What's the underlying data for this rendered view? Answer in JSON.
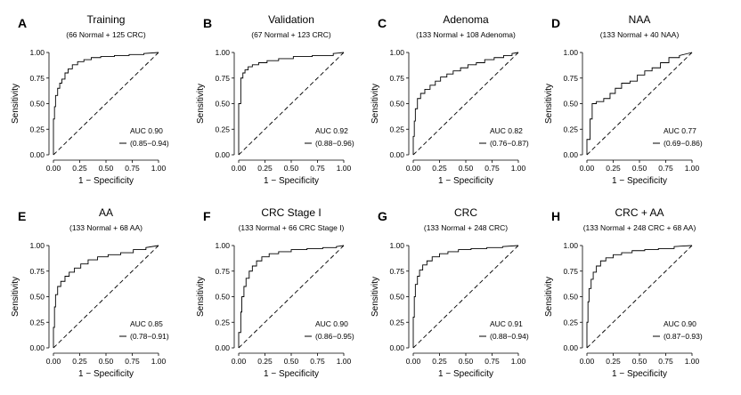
{
  "chart_data": [
    {
      "type": "line",
      "panel_letter": "A",
      "title": "Training",
      "subtitle": "(66 Normal + 125 CRC)",
      "xlabel": "1 − Specificity",
      "ylabel": "Sensitivity",
      "xlim": [
        0,
        1
      ],
      "ylim": [
        0,
        1
      ],
      "x_ticks": [
        "0.00",
        "0.25",
        "0.50",
        "0.75",
        "1.00"
      ],
      "y_ticks": [
        "0.00",
        "0.25",
        "0.50",
        "0.75",
        "1.00"
      ],
      "auc": "AUC 0.90",
      "ci": "(0.85−0.94)",
      "series": [
        {
          "x": [
            0,
            0,
            0.01,
            0.01,
            0.02,
            0.02,
            0.04,
            0.04,
            0.06,
            0.06,
            0.08,
            0.08,
            0.11,
            0.11,
            0.14,
            0.14,
            0.18,
            0.18,
            0.23,
            0.23,
            0.29,
            0.29,
            0.36,
            0.36,
            0.45,
            0.45,
            0.58,
            0.58,
            0.72,
            0.72,
            0.86,
            0.86,
            1
          ],
          "y": [
            0,
            0.35,
            0.35,
            0.47,
            0.47,
            0.58,
            0.58,
            0.65,
            0.65,
            0.7,
            0.7,
            0.74,
            0.74,
            0.8,
            0.8,
            0.84,
            0.84,
            0.88,
            0.88,
            0.91,
            0.91,
            0.93,
            0.93,
            0.95,
            0.95,
            0.96,
            0.96,
            0.97,
            0.97,
            0.98,
            0.98,
            0.99,
            1
          ]
        }
      ]
    },
    {
      "type": "line",
      "panel_letter": "B",
      "title": "Validation",
      "subtitle": "(67 Normal + 123 CRC)",
      "xlabel": "1 − Specificity",
      "ylabel": "Sensitivity",
      "xlim": [
        0,
        1
      ],
      "ylim": [
        0,
        1
      ],
      "x_ticks": [
        "0.00",
        "0.25",
        "0.50",
        "0.75",
        "1.00"
      ],
      "y_ticks": [
        "0.00",
        "0.25",
        "0.50",
        "0.75",
        "1.00"
      ],
      "auc": "AUC 0.92",
      "ci": "(0.88−0.96)",
      "series": [
        {
          "x": [
            0,
            0,
            0.02,
            0.02,
            0.04,
            0.04,
            0.06,
            0.06,
            0.09,
            0.09,
            0.13,
            0.13,
            0.19,
            0.19,
            0.27,
            0.27,
            0.38,
            0.38,
            0.52,
            0.52,
            0.7,
            0.7,
            0.9,
            0.9,
            1
          ],
          "y": [
            0,
            0.5,
            0.5,
            0.75,
            0.75,
            0.8,
            0.8,
            0.83,
            0.83,
            0.86,
            0.86,
            0.88,
            0.88,
            0.9,
            0.9,
            0.92,
            0.92,
            0.94,
            0.94,
            0.96,
            0.96,
            0.97,
            0.97,
            0.99,
            1
          ]
        }
      ]
    },
    {
      "type": "line",
      "panel_letter": "C",
      "title": "Adenoma",
      "subtitle": "(133 Normal + 108 Adenoma)",
      "xlabel": "1 − Specificity",
      "ylabel": "Sensitivity",
      "xlim": [
        0,
        1
      ],
      "ylim": [
        0,
        1
      ],
      "x_ticks": [
        "0.00",
        "0.25",
        "0.50",
        "0.75",
        "1.00"
      ],
      "y_ticks": [
        "0.00",
        "0.25",
        "0.50",
        "0.75",
        "1.00"
      ],
      "auc": "AUC 0.82",
      "ci": "(0.76−0.87)",
      "series": [
        {
          "x": [
            0,
            0,
            0.01,
            0.01,
            0.02,
            0.02,
            0.04,
            0.04,
            0.07,
            0.07,
            0.11,
            0.11,
            0.16,
            0.16,
            0.21,
            0.21,
            0.26,
            0.26,
            0.32,
            0.32,
            0.38,
            0.38,
            0.45,
            0.45,
            0.52,
            0.52,
            0.6,
            0.6,
            0.68,
            0.68,
            0.77,
            0.77,
            0.86,
            0.86,
            0.94,
            0.94,
            1
          ],
          "y": [
            0,
            0.18,
            0.18,
            0.33,
            0.33,
            0.45,
            0.45,
            0.55,
            0.55,
            0.6,
            0.6,
            0.64,
            0.64,
            0.68,
            0.68,
            0.72,
            0.72,
            0.76,
            0.76,
            0.79,
            0.79,
            0.82,
            0.82,
            0.85,
            0.85,
            0.88,
            0.88,
            0.9,
            0.9,
            0.93,
            0.93,
            0.95,
            0.95,
            0.97,
            0.97,
            0.99,
            1
          ]
        }
      ]
    },
    {
      "type": "line",
      "panel_letter": "D",
      "title": "NAA",
      "subtitle": "(133 Normal + 40 NAA)",
      "xlabel": "1 − Specificity",
      "ylabel": "Sensitivity",
      "xlim": [
        0,
        1
      ],
      "ylim": [
        0,
        1
      ],
      "x_ticks": [
        "0.00",
        "0.25",
        "0.50",
        "0.75",
        "1.00"
      ],
      "y_ticks": [
        "0.00",
        "0.25",
        "0.50",
        "0.75",
        "1.00"
      ],
      "auc": "AUC 0.77",
      "ci": "(0.69−0.86)",
      "series": [
        {
          "x": [
            0,
            0,
            0.03,
            0.03,
            0.05,
            0.05,
            0.09,
            0.09,
            0.16,
            0.16,
            0.22,
            0.22,
            0.27,
            0.27,
            0.33,
            0.33,
            0.41,
            0.41,
            0.48,
            0.48,
            0.55,
            0.55,
            0.62,
            0.62,
            0.7,
            0.7,
            0.78,
            0.78,
            0.88,
            0.88,
            1
          ],
          "y": [
            0,
            0.15,
            0.15,
            0.35,
            0.35,
            0.5,
            0.5,
            0.52,
            0.52,
            0.55,
            0.55,
            0.6,
            0.6,
            0.65,
            0.65,
            0.7,
            0.7,
            0.72,
            0.72,
            0.78,
            0.78,
            0.82,
            0.82,
            0.85,
            0.85,
            0.9,
            0.9,
            0.95,
            0.95,
            0.97,
            1
          ]
        }
      ]
    },
    {
      "type": "line",
      "panel_letter": "E",
      "title": "AA",
      "subtitle": "(133 Normal + 68 AA)",
      "xlabel": "1 − Specificity",
      "ylabel": "Sensitivity",
      "xlim": [
        0,
        1
      ],
      "ylim": [
        0,
        1
      ],
      "x_ticks": [
        "0.00",
        "0.25",
        "0.50",
        "0.75",
        "1.00"
      ],
      "y_ticks": [
        "0.00",
        "0.25",
        "0.50",
        "0.75",
        "1.00"
      ],
      "auc": "AUC 0.85",
      "ci": "(0.78−0.91)",
      "series": [
        {
          "x": [
            0,
            0,
            0.01,
            0.01,
            0.02,
            0.02,
            0.04,
            0.04,
            0.07,
            0.07,
            0.11,
            0.11,
            0.15,
            0.15,
            0.2,
            0.2,
            0.26,
            0.26,
            0.33,
            0.33,
            0.42,
            0.42,
            0.52,
            0.52,
            0.64,
            0.64,
            0.76,
            0.76,
            0.88,
            0.88,
            1
          ],
          "y": [
            0,
            0.2,
            0.2,
            0.4,
            0.4,
            0.52,
            0.52,
            0.6,
            0.6,
            0.65,
            0.65,
            0.7,
            0.7,
            0.74,
            0.74,
            0.78,
            0.78,
            0.82,
            0.82,
            0.86,
            0.86,
            0.89,
            0.89,
            0.91,
            0.91,
            0.93,
            0.93,
            0.96,
            0.96,
            0.98,
            1
          ]
        }
      ]
    },
    {
      "type": "line",
      "panel_letter": "F",
      "title": "CRC Stage I",
      "subtitle": "(133 Normal + 66 CRC Stage I)",
      "xlabel": "1 − Specificity",
      "ylabel": "Sensitivity",
      "xlim": [
        0,
        1
      ],
      "ylim": [
        0,
        1
      ],
      "x_ticks": [
        "0.00",
        "0.25",
        "0.50",
        "0.75",
        "1.00"
      ],
      "y_ticks": [
        "0.00",
        "0.25",
        "0.50",
        "0.75",
        "1.00"
      ],
      "auc": "AUC 0.90",
      "ci": "(0.86−0.95)",
      "series": [
        {
          "x": [
            0,
            0,
            0.02,
            0.02,
            0.03,
            0.03,
            0.05,
            0.05,
            0.07,
            0.07,
            0.1,
            0.1,
            0.13,
            0.13,
            0.17,
            0.17,
            0.22,
            0.22,
            0.29,
            0.29,
            0.38,
            0.38,
            0.5,
            0.5,
            0.65,
            0.65,
            0.8,
            0.8,
            0.93,
            0.93,
            1
          ],
          "y": [
            0,
            0.15,
            0.15,
            0.35,
            0.35,
            0.5,
            0.5,
            0.6,
            0.6,
            0.68,
            0.68,
            0.75,
            0.75,
            0.8,
            0.8,
            0.85,
            0.85,
            0.89,
            0.89,
            0.92,
            0.92,
            0.94,
            0.94,
            0.96,
            0.96,
            0.97,
            0.97,
            0.98,
            0.98,
            0.99,
            1
          ]
        }
      ]
    },
    {
      "type": "line",
      "panel_letter": "G",
      "title": "CRC",
      "subtitle": "(133 Normal + 248 CRC)",
      "xlabel": "1 − Specificity",
      "ylabel": "Sensitivity",
      "xlim": [
        0,
        1
      ],
      "ylim": [
        0,
        1
      ],
      "x_ticks": [
        "0.00",
        "0.25",
        "0.50",
        "0.75",
        "1.00"
      ],
      "y_ticks": [
        "0.00",
        "0.25",
        "0.50",
        "0.75",
        "1.00"
      ],
      "auc": "AUC 0.91",
      "ci": "(0.88−0.94)",
      "series": [
        {
          "x": [
            0,
            0,
            0.01,
            0.01,
            0.02,
            0.02,
            0.04,
            0.04,
            0.06,
            0.06,
            0.09,
            0.09,
            0.13,
            0.13,
            0.18,
            0.18,
            0.25,
            0.25,
            0.33,
            0.33,
            0.43,
            0.43,
            0.55,
            0.55,
            0.7,
            0.7,
            0.85,
            0.85,
            1
          ],
          "y": [
            0,
            0.3,
            0.3,
            0.5,
            0.5,
            0.62,
            0.62,
            0.7,
            0.7,
            0.76,
            0.76,
            0.81,
            0.81,
            0.85,
            0.85,
            0.89,
            0.89,
            0.92,
            0.92,
            0.94,
            0.94,
            0.96,
            0.96,
            0.97,
            0.97,
            0.98,
            0.98,
            0.99,
            1
          ]
        }
      ]
    },
    {
      "type": "line",
      "panel_letter": "H",
      "title": "CRC + AA",
      "subtitle": "(133 Normal + 248 CRC + 68 AA)",
      "xlabel": "1 − Specificity",
      "ylabel": "Sensitivity",
      "xlim": [
        0,
        1
      ],
      "ylim": [
        0,
        1
      ],
      "x_ticks": [
        "0.00",
        "0.25",
        "0.50",
        "0.75",
        "1.00"
      ],
      "y_ticks": [
        "0.00",
        "0.25",
        "0.50",
        "0.75",
        "1.00"
      ],
      "auc": "AUC 0.90",
      "ci": "(0.87−0.93)",
      "series": [
        {
          "x": [
            0,
            0,
            0.01,
            0.01,
            0.02,
            0.02,
            0.04,
            0.04,
            0.06,
            0.06,
            0.09,
            0.09,
            0.13,
            0.13,
            0.18,
            0.18,
            0.25,
            0.25,
            0.33,
            0.33,
            0.43,
            0.43,
            0.55,
            0.55,
            0.68,
            0.68,
            0.83,
            0.83,
            1
          ],
          "y": [
            0,
            0.25,
            0.25,
            0.45,
            0.45,
            0.58,
            0.58,
            0.67,
            0.67,
            0.74,
            0.74,
            0.8,
            0.8,
            0.85,
            0.85,
            0.88,
            0.88,
            0.91,
            0.91,
            0.93,
            0.93,
            0.95,
            0.95,
            0.96,
            0.96,
            0.97,
            0.97,
            0.99,
            1
          ]
        }
      ]
    }
  ],
  "colors": {
    "roc_line": "#000000",
    "reference_line": "#000000",
    "axis": "#000000"
  }
}
